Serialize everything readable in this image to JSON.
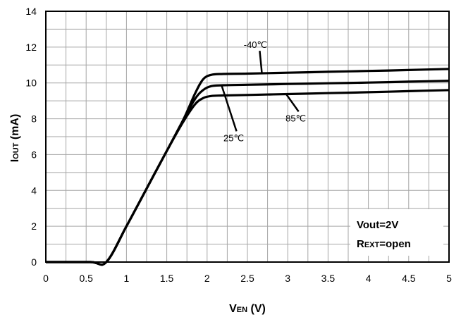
{
  "chart_data": {
    "type": "line",
    "xlabel": "VEN (V)",
    "xlabel_main": "V",
    "xlabel_sub": "EN",
    "xlabel_rest": " (V)",
    "ylabel": "IOUT (mA)",
    "ylabel_main": "I",
    "ylabel_sub": "OUT",
    "ylabel_rest": " (mA)",
    "xlim": [
      0,
      5
    ],
    "ylim": [
      0,
      14
    ],
    "x_ticks": [
      "0",
      "0.5",
      "1",
      "1.5",
      "2",
      "2.5",
      "3",
      "3.5",
      "4",
      "4.5",
      "5"
    ],
    "y_ticks": [
      "0",
      "2",
      "4",
      "6",
      "8",
      "10",
      "12",
      "14"
    ],
    "grid": true,
    "series": [
      {
        "name": "-40℃",
        "x": [
          0,
          0.55,
          0.75,
          1.0,
          1.25,
          1.5,
          1.7,
          1.85,
          1.95,
          2.05,
          2.2,
          2.5,
          3.0,
          3.5,
          4.0,
          4.5,
          5.0
        ],
        "y": [
          0,
          0,
          0,
          2.0,
          4.1,
          6.2,
          7.9,
          9.4,
          10.2,
          10.45,
          10.5,
          10.52,
          10.57,
          10.62,
          10.67,
          10.72,
          10.78
        ]
      },
      {
        "name": "25℃",
        "x": [
          0,
          0.55,
          0.75,
          1.0,
          1.25,
          1.5,
          1.7,
          1.85,
          1.95,
          2.05,
          2.2,
          2.5,
          3.0,
          3.5,
          4.0,
          4.5,
          5.0
        ],
        "y": [
          0,
          0,
          0,
          2.0,
          4.1,
          6.2,
          7.9,
          9.1,
          9.6,
          9.82,
          9.87,
          9.9,
          9.94,
          9.98,
          10.02,
          10.07,
          10.12
        ]
      },
      {
        "name": "85℃",
        "x": [
          0,
          0.55,
          0.75,
          1.0,
          1.25,
          1.5,
          1.7,
          1.85,
          1.95,
          2.05,
          2.2,
          2.5,
          3.0,
          3.5,
          4.0,
          4.5,
          5.0
        ],
        "y": [
          0,
          0,
          0,
          2.0,
          4.1,
          6.2,
          7.8,
          8.8,
          9.15,
          9.27,
          9.3,
          9.33,
          9.38,
          9.43,
          9.48,
          9.54,
          9.6
        ]
      }
    ],
    "annotations": [
      {
        "text": "-40℃",
        "label_x": 2.6,
        "label_y": 11.95,
        "arrow_to": [
          2.68,
          10.52
        ]
      },
      {
        "text": "25℃",
        "label_x": 2.33,
        "label_y": 6.75,
        "arrow_to": [
          2.18,
          9.86
        ]
      },
      {
        "text": "85℃",
        "label_x": 3.1,
        "label_y": 7.85,
        "arrow_to": [
          2.98,
          9.38
        ]
      }
    ],
    "notes": {
      "line1": "Vout=2V",
      "line2_main": "R",
      "line2_sub": "EXT",
      "line2_rest": "=open"
    }
  }
}
